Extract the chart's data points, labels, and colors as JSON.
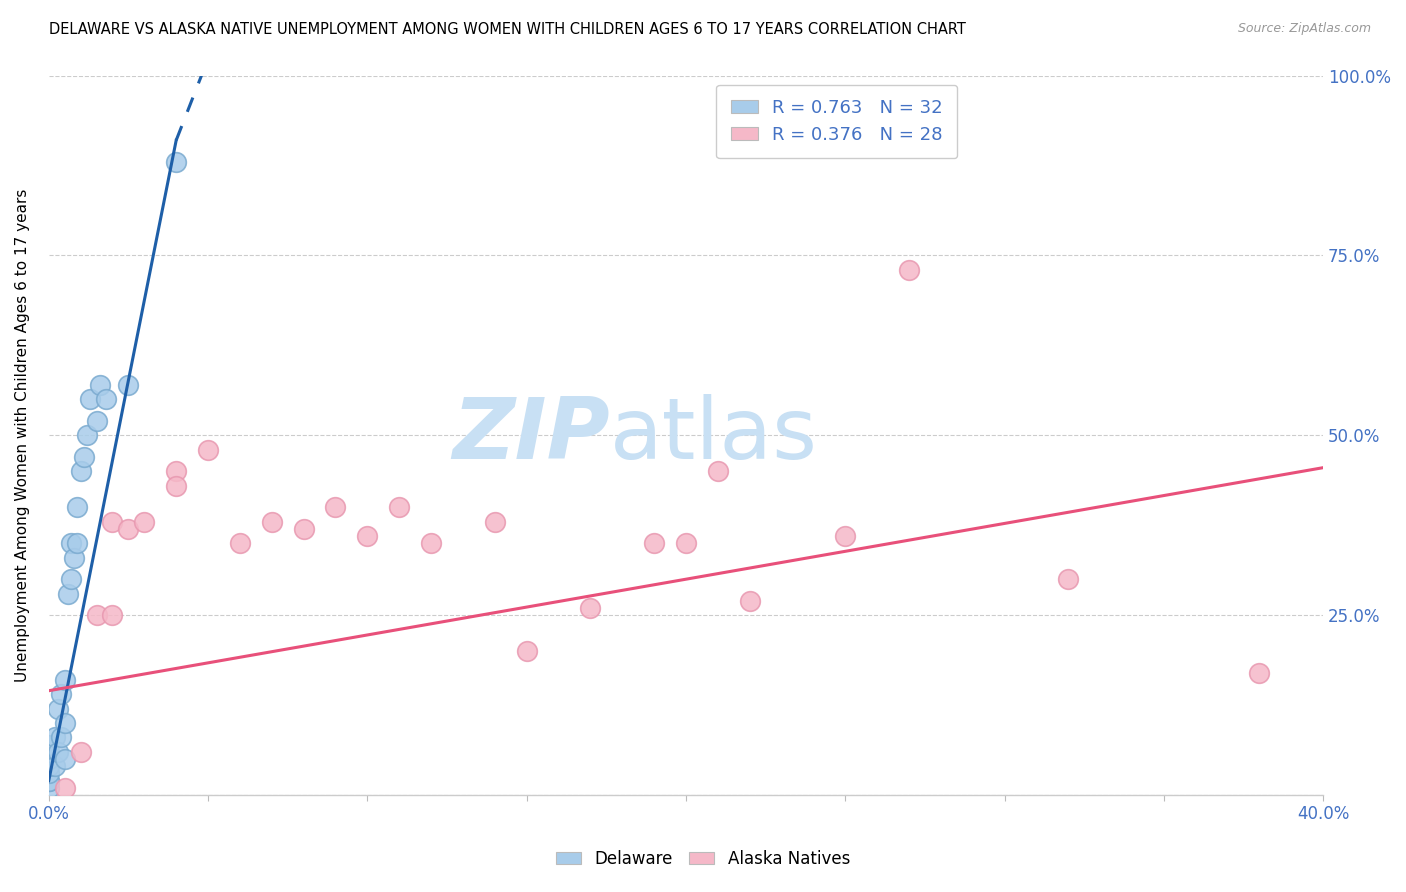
{
  "title": "DELAWARE VS ALASKA NATIVE UNEMPLOYMENT AMONG WOMEN WITH CHILDREN AGES 6 TO 17 YEARS CORRELATION CHART",
  "source": "Source: ZipAtlas.com",
  "ylabel": "Unemployment Among Women with Children Ages 6 to 17 years",
  "xlim": [
    0.0,
    0.4
  ],
  "ylim": [
    0.0,
    1.0
  ],
  "delaware_x": [
    0.0,
    0.0,
    0.0,
    0.0,
    0.0,
    0.0,
    0.0,
    0.0,
    0.002,
    0.002,
    0.003,
    0.003,
    0.004,
    0.004,
    0.005,
    0.005,
    0.005,
    0.006,
    0.007,
    0.007,
    0.008,
    0.009,
    0.009,
    0.01,
    0.011,
    0.012,
    0.013,
    0.015,
    0.016,
    0.018,
    0.025,
    0.04
  ],
  "delaware_y": [
    0.01,
    0.02,
    0.02,
    0.03,
    0.04,
    0.05,
    0.06,
    0.07,
    0.04,
    0.08,
    0.06,
    0.12,
    0.08,
    0.14,
    0.05,
    0.1,
    0.16,
    0.28,
    0.3,
    0.35,
    0.33,
    0.35,
    0.4,
    0.45,
    0.47,
    0.5,
    0.55,
    0.52,
    0.57,
    0.55,
    0.57,
    0.88
  ],
  "alaska_x": [
    0.005,
    0.01,
    0.015,
    0.02,
    0.02,
    0.025,
    0.03,
    0.04,
    0.04,
    0.05,
    0.06,
    0.07,
    0.08,
    0.09,
    0.1,
    0.11,
    0.12,
    0.14,
    0.15,
    0.17,
    0.19,
    0.2,
    0.21,
    0.22,
    0.25,
    0.27,
    0.32,
    0.38
  ],
  "alaska_y": [
    0.01,
    0.06,
    0.25,
    0.25,
    0.38,
    0.37,
    0.38,
    0.45,
    0.43,
    0.48,
    0.35,
    0.38,
    0.37,
    0.4,
    0.36,
    0.4,
    0.35,
    0.38,
    0.2,
    0.26,
    0.35,
    0.35,
    0.45,
    0.27,
    0.36,
    0.73,
    0.3,
    0.17
  ],
  "delaware_color": "#A8CCEA",
  "alaska_color": "#F5B8C8",
  "delaware_line_color": "#1E5FA8",
  "alaska_line_color": "#E8507A",
  "del_line_x0": 0.0,
  "del_line_y0": 0.02,
  "del_line_x1": 0.04,
  "del_line_y1": 0.91,
  "del_line_xdash0": 0.04,
  "del_line_ydash0": 0.91,
  "del_line_xdash1": 0.055,
  "del_line_ydash1": 1.08,
  "ak_line_x0": 0.0,
  "ak_line_y0": 0.145,
  "ak_line_x1": 0.4,
  "ak_line_y1": 0.455,
  "watermark_line1": "ZIP",
  "watermark_line2": "atlas",
  "watermark_color": "#C8E0F4",
  "r_delaware": 0.763,
  "n_delaware": 32,
  "r_alaska": 0.376,
  "n_alaska": 28
}
